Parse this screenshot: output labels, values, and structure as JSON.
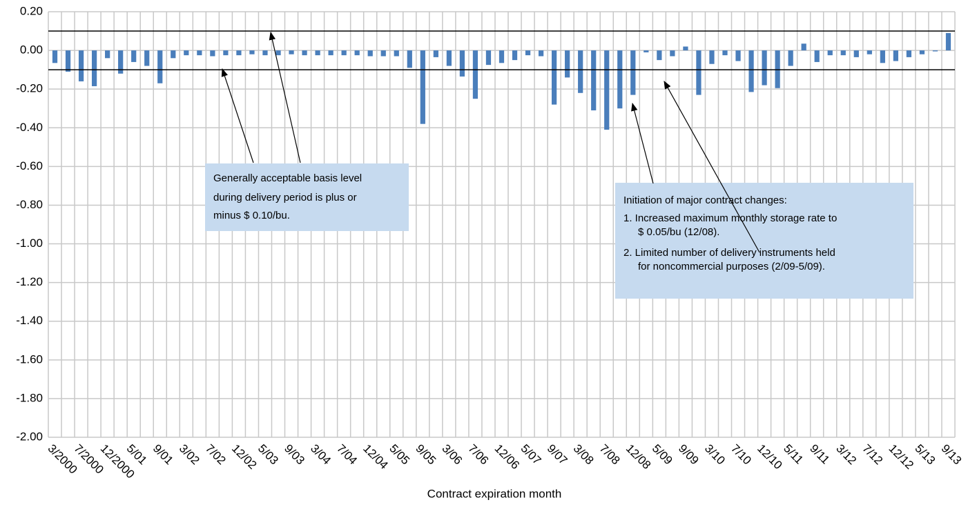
{
  "chart_data": {
    "type": "bar",
    "x_label": "Contract expiration month",
    "categories": [
      "3/2000",
      null,
      "7/2000",
      null,
      "12/2000",
      null,
      "5/01",
      null,
      "9/01",
      null,
      "3/02",
      null,
      "7/02",
      null,
      "12/02",
      null,
      "5/03",
      null,
      "9/03",
      null,
      "3/04",
      null,
      "7/04",
      null,
      "12/04",
      null,
      "5/05",
      null,
      "9/05",
      null,
      "3/06",
      null,
      "7/06",
      null,
      "12/06",
      null,
      "5/07",
      null,
      "9/07",
      null,
      "3/08",
      null,
      "7/08",
      null,
      "12/08",
      null,
      "5/09",
      null,
      "9/09",
      null,
      "3/10",
      null,
      "7/10",
      null,
      "12/10",
      null,
      "5/11",
      null,
      "9/11",
      null,
      "3/12",
      null,
      "7/12",
      null,
      "12/12",
      null,
      "5/13",
      null,
      "9/13"
    ],
    "values": [
      -0.065,
      -0.11,
      -0.16,
      -0.185,
      -0.04,
      -0.12,
      -0.06,
      -0.08,
      -0.17,
      -0.04,
      -0.025,
      -0.025,
      -0.03,
      -0.025,
      -0.025,
      -0.02,
      -0.025,
      -0.025,
      -0.02,
      -0.025,
      -0.025,
      -0.025,
      -0.025,
      -0.025,
      -0.03,
      -0.03,
      -0.03,
      -0.09,
      -0.38,
      -0.035,
      -0.08,
      -0.135,
      -0.25,
      -0.075,
      -0.065,
      -0.05,
      -0.025,
      -0.03,
      -0.28,
      -0.14,
      -0.22,
      -0.31,
      -0.41,
      -0.3,
      -0.23,
      -0.01,
      -0.05,
      -0.03,
      0.02,
      -0.23,
      -0.07,
      -0.025,
      -0.055,
      -0.215,
      -0.18,
      -0.195,
      -0.08,
      0.035,
      -0.06,
      -0.025,
      -0.025,
      -0.035,
      -0.02,
      -0.065,
      -0.055,
      -0.035,
      -0.02,
      -0.005,
      0.09
    ],
    "color": "#4a7ebb",
    "ylim": [
      -2.0,
      0.2
    ],
    "yticks": [
      {
        "value": 0.2,
        "label": "0.20"
      },
      {
        "value": 0,
        "label": "0.00"
      },
      {
        "value": -0.2,
        "label": "-0.20"
      },
      {
        "value": -0.4,
        "label": "-0.40"
      },
      {
        "value": -0.6,
        "label": "-0.60"
      },
      {
        "value": -0.8,
        "label": "-0.80"
      },
      {
        "value": -1.0,
        "label": "-1.00"
      },
      {
        "value": -1.2,
        "label": "-1.20"
      },
      {
        "value": -1.4,
        "label": "-1.40"
      },
      {
        "value": -1.6,
        "label": "-1.60"
      },
      {
        "value": -1.8,
        "label": "-1.80"
      },
      {
        "value": -2.0,
        "label": "-2.00"
      }
    ],
    "grid": true,
    "reference_lines": [
      0.1,
      -0.1
    ],
    "annotations": [
      {
        "lines": [
          "Generally acceptable basis level",
          "during delivery period is plus or",
          "minus $ 0.10/bu."
        ]
      },
      {
        "lines": [
          "Initiation of major contract changes:",
          "1. Increased maximum monthly storage rate to",
          "$ 0.05/bu (12/08).",
          "2. Limited number of delivery instruments held",
          "for noncommercial purposes (2/09-5/09)."
        ]
      }
    ]
  }
}
